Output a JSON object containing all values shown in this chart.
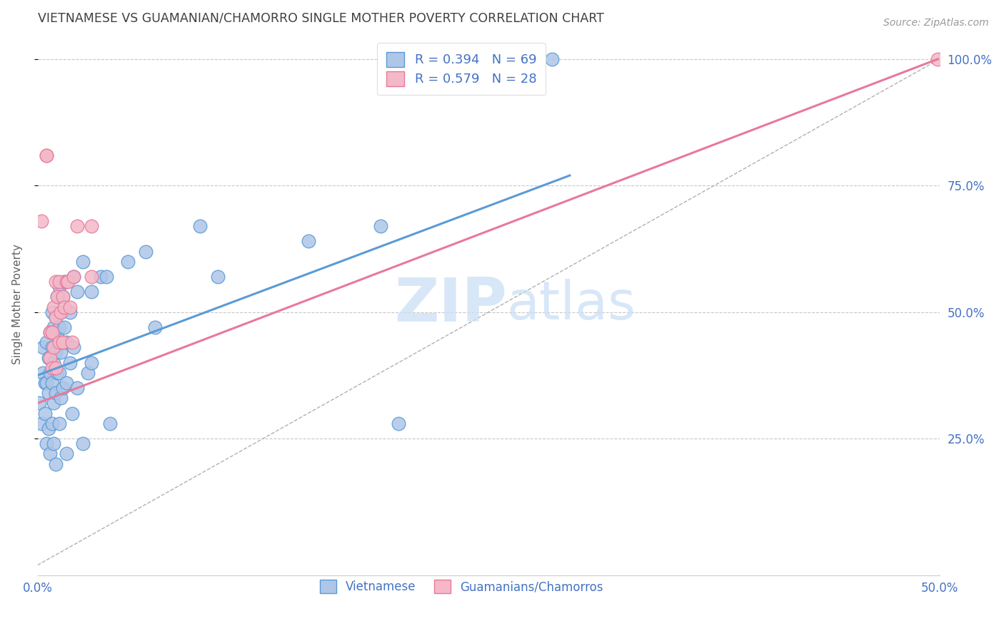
{
  "title": "VIETNAMESE VS GUAMANIAN/CHAMORRO SINGLE MOTHER POVERTY CORRELATION CHART",
  "source": "Source: ZipAtlas.com",
  "ylabel": "Single Mother Poverty",
  "watermark_zip": "ZIP",
  "watermark_atlas": "atlas",
  "blue_color": "#5b9bd5",
  "pink_color": "#e8799a",
  "blue_fill": "#aec6e8",
  "pink_fill": "#f4b8c8",
  "grid_color": "#c8c8c8",
  "axis_color": "#4472c4",
  "title_color": "#404040",
  "source_color": "#999999",
  "xlim": [
    0.0,
    0.5
  ],
  "ylim": [
    -0.02,
    1.05
  ],
  "blue_points": [
    [
      0.001,
      0.32
    ],
    [
      0.002,
      0.28
    ],
    [
      0.003,
      0.38
    ],
    [
      0.003,
      0.43
    ],
    [
      0.004,
      0.36
    ],
    [
      0.004,
      0.3
    ],
    [
      0.005,
      0.44
    ],
    [
      0.005,
      0.36
    ],
    [
      0.005,
      0.24
    ],
    [
      0.006,
      0.41
    ],
    [
      0.006,
      0.34
    ],
    [
      0.006,
      0.27
    ],
    [
      0.007,
      0.46
    ],
    [
      0.007,
      0.38
    ],
    [
      0.007,
      0.22
    ],
    [
      0.008,
      0.5
    ],
    [
      0.008,
      0.43
    ],
    [
      0.008,
      0.36
    ],
    [
      0.008,
      0.28
    ],
    [
      0.009,
      0.47
    ],
    [
      0.009,
      0.4
    ],
    [
      0.009,
      0.32
    ],
    [
      0.009,
      0.24
    ],
    [
      0.01,
      0.49
    ],
    [
      0.01,
      0.42
    ],
    [
      0.01,
      0.34
    ],
    [
      0.01,
      0.2
    ],
    [
      0.011,
      0.53
    ],
    [
      0.011,
      0.46
    ],
    [
      0.011,
      0.38
    ],
    [
      0.012,
      0.55
    ],
    [
      0.012,
      0.47
    ],
    [
      0.012,
      0.38
    ],
    [
      0.012,
      0.28
    ],
    [
      0.013,
      0.5
    ],
    [
      0.013,
      0.42
    ],
    [
      0.013,
      0.33
    ],
    [
      0.014,
      0.53
    ],
    [
      0.014,
      0.44
    ],
    [
      0.014,
      0.35
    ],
    [
      0.015,
      0.56
    ],
    [
      0.015,
      0.47
    ],
    [
      0.016,
      0.44
    ],
    [
      0.016,
      0.36
    ],
    [
      0.016,
      0.22
    ],
    [
      0.018,
      0.5
    ],
    [
      0.018,
      0.4
    ],
    [
      0.019,
      0.3
    ],
    [
      0.02,
      0.57
    ],
    [
      0.02,
      0.43
    ],
    [
      0.022,
      0.54
    ],
    [
      0.022,
      0.35
    ],
    [
      0.025,
      0.6
    ],
    [
      0.025,
      0.24
    ],
    [
      0.028,
      0.38
    ],
    [
      0.03,
      0.54
    ],
    [
      0.03,
      0.4
    ],
    [
      0.035,
      0.57
    ],
    [
      0.038,
      0.57
    ],
    [
      0.04,
      0.28
    ],
    [
      0.05,
      0.6
    ],
    [
      0.06,
      0.62
    ],
    [
      0.065,
      0.47
    ],
    [
      0.09,
      0.67
    ],
    [
      0.1,
      0.57
    ],
    [
      0.15,
      0.64
    ],
    [
      0.2,
      0.28
    ],
    [
      0.19,
      0.67
    ],
    [
      0.285,
      1.0
    ]
  ],
  "pink_points": [
    [
      0.002,
      0.68
    ],
    [
      0.005,
      0.81
    ],
    [
      0.005,
      0.81
    ],
    [
      0.007,
      0.46
    ],
    [
      0.007,
      0.41
    ],
    [
      0.008,
      0.46
    ],
    [
      0.008,
      0.39
    ],
    [
      0.009,
      0.51
    ],
    [
      0.009,
      0.43
    ],
    [
      0.01,
      0.56
    ],
    [
      0.01,
      0.49
    ],
    [
      0.01,
      0.39
    ],
    [
      0.011,
      0.53
    ],
    [
      0.012,
      0.56
    ],
    [
      0.012,
      0.44
    ],
    [
      0.013,
      0.5
    ],
    [
      0.014,
      0.53
    ],
    [
      0.014,
      0.44
    ],
    [
      0.015,
      0.51
    ],
    [
      0.016,
      0.56
    ],
    [
      0.017,
      0.56
    ],
    [
      0.018,
      0.51
    ],
    [
      0.019,
      0.44
    ],
    [
      0.02,
      0.57
    ],
    [
      0.022,
      0.67
    ],
    [
      0.03,
      0.67
    ],
    [
      0.03,
      0.57
    ],
    [
      0.499,
      1.0
    ]
  ],
  "dashed_line": [
    [
      0.0,
      0.0
    ],
    [
      0.5,
      1.0
    ]
  ],
  "blue_line": [
    [
      0.0,
      0.375
    ],
    [
      0.295,
      0.77
    ]
  ],
  "pink_line": [
    [
      0.0,
      0.32
    ],
    [
      0.499,
      1.0
    ]
  ]
}
